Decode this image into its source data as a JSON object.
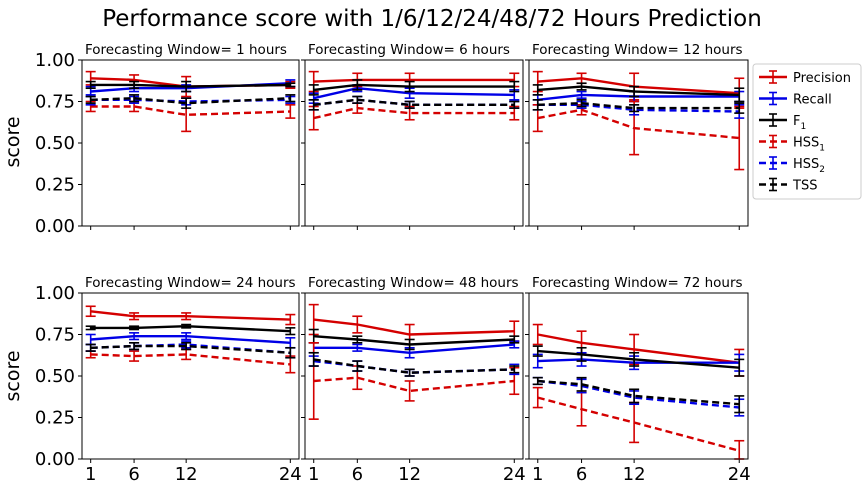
{
  "figure": {
    "title": "Performance score with 1/6/12/24/48/72 Hours Prediction"
  },
  "chart_data": {
    "type": "line",
    "ylabel": "score",
    "ylim": [
      0,
      1
    ],
    "yticks": [
      "0.00",
      "0.25",
      "0.50",
      "0.75",
      "1.00"
    ],
    "xticks": [
      1,
      6,
      12,
      24
    ],
    "xlim": [
      0,
      25
    ],
    "legend_position": "right",
    "legend": [
      {
        "label": "Precision",
        "sub": "",
        "color": "#d40000",
        "dash": false
      },
      {
        "label": "Recall",
        "sub": "",
        "color": "#0000e6",
        "dash": false
      },
      {
        "label": "F",
        "sub": "1",
        "color": "#000000",
        "dash": false
      },
      {
        "label": "HSS",
        "sub": "1",
        "color": "#d40000",
        "dash": true
      },
      {
        "label": "HSS",
        "sub": "2",
        "color": "#0000e6",
        "dash": true
      },
      {
        "label": "TSS",
        "sub": "",
        "color": "#000000",
        "dash": true
      }
    ],
    "panels": [
      {
        "title": "Forecasting Window= 1 hours",
        "x": [
          1,
          6,
          12,
          24
        ],
        "series": [
          {
            "key": "Precision",
            "color": "#d40000",
            "dash": false,
            "values": [
              0.89,
              0.88,
              0.84,
              0.85
            ],
            "err": [
              0.04,
              0.03,
              0.06,
              0.02
            ]
          },
          {
            "key": "Recall",
            "color": "#0000e6",
            "dash": false,
            "values": [
              0.81,
              0.83,
              0.83,
              0.86
            ],
            "err": [
              0.03,
              0.02,
              0.02,
              0.02
            ]
          },
          {
            "key": "F1",
            "color": "#000000",
            "dash": false,
            "values": [
              0.85,
              0.85,
              0.84,
              0.85
            ],
            "err": [
              0.02,
              0.02,
              0.03,
              0.01
            ]
          },
          {
            "key": "HSS1",
            "color": "#d40000",
            "dash": true,
            "values": [
              0.72,
              0.72,
              0.67,
              0.69
            ],
            "err": [
              0.03,
              0.03,
              0.1,
              0.04
            ]
          },
          {
            "key": "HSS2",
            "color": "#0000e6",
            "dash": true,
            "values": [
              0.76,
              0.76,
              0.75,
              0.76
            ],
            "err": [
              0.03,
              0.02,
              0.02,
              0.02
            ]
          },
          {
            "key": "TSS",
            "color": "#000000",
            "dash": true,
            "values": [
              0.76,
              0.77,
              0.74,
              0.77
            ],
            "err": [
              0.02,
              0.02,
              0.03,
              0.02
            ]
          }
        ]
      },
      {
        "title": "Forecasting Window= 6 hours",
        "x": [
          1,
          6,
          12,
          24
        ],
        "series": [
          {
            "key": "Precision",
            "color": "#d40000",
            "dash": false,
            "values": [
              0.87,
              0.88,
              0.88,
              0.88
            ],
            "err": [
              0.06,
              0.04,
              0.04,
              0.04
            ]
          },
          {
            "key": "Recall",
            "color": "#0000e6",
            "dash": false,
            "values": [
              0.77,
              0.83,
              0.8,
              0.79
            ],
            "err": [
              0.03,
              0.02,
              0.03,
              0.03
            ]
          },
          {
            "key": "F1",
            "color": "#000000",
            "dash": false,
            "values": [
              0.82,
              0.85,
              0.84,
              0.84
            ],
            "err": [
              0.03,
              0.03,
              0.03,
              0.03
            ]
          },
          {
            "key": "HSS1",
            "color": "#d40000",
            "dash": true,
            "values": [
              0.65,
              0.71,
              0.68,
              0.68
            ],
            "err": [
              0.07,
              0.03,
              0.04,
              0.04
            ]
          },
          {
            "key": "HSS2",
            "color": "#0000e6",
            "dash": true,
            "values": [
              0.73,
              0.76,
              0.73,
              0.73
            ],
            "err": [
              0.03,
              0.02,
              0.02,
              0.02
            ]
          },
          {
            "key": "TSS",
            "color": "#000000",
            "dash": true,
            "values": [
              0.73,
              0.76,
              0.73,
              0.73
            ],
            "err": [
              0.03,
              0.02,
              0.02,
              0.02
            ]
          }
        ]
      },
      {
        "title": "Forecasting Window= 12 hours",
        "x": [
          1,
          6,
          12,
          24
        ],
        "series": [
          {
            "key": "Precision",
            "color": "#d40000",
            "dash": false,
            "values": [
              0.87,
              0.89,
              0.84,
              0.8
            ],
            "err": [
              0.06,
              0.03,
              0.08,
              0.09
            ]
          },
          {
            "key": "Recall",
            "color": "#0000e6",
            "dash": false,
            "values": [
              0.76,
              0.79,
              0.78,
              0.78
            ],
            "err": [
              0.03,
              0.02,
              0.03,
              0.03
            ]
          },
          {
            "key": "F1",
            "color": "#000000",
            "dash": false,
            "values": [
              0.82,
              0.84,
              0.81,
              0.79
            ],
            "err": [
              0.03,
              0.02,
              0.03,
              0.04
            ]
          },
          {
            "key": "HSS1",
            "color": "#d40000",
            "dash": true,
            "values": [
              0.65,
              0.7,
              0.59,
              0.53
            ],
            "err": [
              0.08,
              0.03,
              0.16,
              0.19
            ]
          },
          {
            "key": "HSS2",
            "color": "#0000e6",
            "dash": true,
            "values": [
              0.73,
              0.73,
              0.7,
              0.69
            ],
            "err": [
              0.03,
              0.02,
              0.03,
              0.04
            ]
          },
          {
            "key": "TSS",
            "color": "#000000",
            "dash": true,
            "values": [
              0.73,
              0.74,
              0.71,
              0.71
            ],
            "err": [
              0.03,
              0.02,
              0.02,
              0.03
            ]
          }
        ]
      },
      {
        "title": "Forecasting Window= 24 hours",
        "x": [
          1,
          6,
          12,
          24
        ],
        "series": [
          {
            "key": "Precision",
            "color": "#d40000",
            "dash": false,
            "values": [
              0.89,
              0.86,
              0.86,
              0.84
            ],
            "err": [
              0.03,
              0.02,
              0.02,
              0.03
            ]
          },
          {
            "key": "Recall",
            "color": "#0000e6",
            "dash": false,
            "values": [
              0.72,
              0.74,
              0.74,
              0.7
            ],
            "err": [
              0.03,
              0.02,
              0.02,
              0.03
            ]
          },
          {
            "key": "F1",
            "color": "#000000",
            "dash": false,
            "values": [
              0.79,
              0.79,
              0.8,
              0.77
            ],
            "err": [
              0.01,
              0.01,
              0.01,
              0.02
            ]
          },
          {
            "key": "HSS1",
            "color": "#d40000",
            "dash": true,
            "values": [
              0.63,
              0.62,
              0.63,
              0.57
            ],
            "err": [
              0.02,
              0.03,
              0.03,
              0.05
            ]
          },
          {
            "key": "HSS2",
            "color": "#0000e6",
            "dash": true,
            "values": [
              0.67,
              0.68,
              0.69,
              0.64
            ],
            "err": [
              0.02,
              0.02,
              0.02,
              0.03
            ]
          },
          {
            "key": "TSS",
            "color": "#000000",
            "dash": true,
            "values": [
              0.67,
              0.68,
              0.68,
              0.64
            ],
            "err": [
              0.02,
              0.02,
              0.02,
              0.03
            ]
          }
        ]
      },
      {
        "title": "Forecasting Window= 48 hours",
        "x": [
          1,
          6,
          12,
          24
        ],
        "series": [
          {
            "key": "Precision",
            "color": "#d40000",
            "dash": false,
            "values": [
              0.84,
              0.81,
              0.75,
              0.77
            ],
            "err": [
              0.09,
              0.05,
              0.06,
              0.06
            ]
          },
          {
            "key": "Recall",
            "color": "#0000e6",
            "dash": false,
            "values": [
              0.67,
              0.67,
              0.64,
              0.69
            ],
            "err": [
              0.03,
              0.02,
              0.03,
              0.02
            ]
          },
          {
            "key": "F1",
            "color": "#000000",
            "dash": false,
            "values": [
              0.74,
              0.72,
              0.69,
              0.72
            ],
            "err": [
              0.04,
              0.02,
              0.03,
              0.02
            ]
          },
          {
            "key": "HSS1",
            "color": "#d40000",
            "dash": true,
            "values": [
              0.47,
              0.49,
              0.41,
              0.47
            ],
            "err": [
              0.23,
              0.07,
              0.06,
              0.08
            ]
          },
          {
            "key": "HSS2",
            "color": "#0000e6",
            "dash": true,
            "values": [
              0.59,
              0.56,
              0.52,
              0.54
            ],
            "err": [
              0.03,
              0.03,
              0.02,
              0.03
            ]
          },
          {
            "key": "TSS",
            "color": "#000000",
            "dash": true,
            "values": [
              0.6,
              0.56,
              0.52,
              0.54
            ],
            "err": [
              0.04,
              0.03,
              0.02,
              0.02
            ]
          }
        ]
      },
      {
        "title": "Forecasting Window= 72 hours",
        "x": [
          1,
          6,
          12,
          24
        ],
        "series": [
          {
            "key": "Precision",
            "color": "#d40000",
            "dash": false,
            "values": [
              0.75,
              0.7,
              0.66,
              0.58
            ],
            "err": [
              0.06,
              0.07,
              0.09,
              0.08
            ]
          },
          {
            "key": "Recall",
            "color": "#0000e6",
            "dash": false,
            "values": [
              0.59,
              0.6,
              0.58,
              0.58
            ],
            "err": [
              0.04,
              0.04,
              0.04,
              0.05
            ]
          },
          {
            "key": "F1",
            "color": "#000000",
            "dash": false,
            "values": [
              0.65,
              0.63,
              0.6,
              0.55
            ],
            "err": [
              0.03,
              0.04,
              0.04,
              0.05
            ]
          },
          {
            "key": "HSS1",
            "color": "#d40000",
            "dash": true,
            "values": [
              0.37,
              0.3,
              0.22,
              0.05
            ],
            "err": [
              0.06,
              0.1,
              0.12,
              0.06
            ]
          },
          {
            "key": "HSS2",
            "color": "#0000e6",
            "dash": true,
            "values": [
              0.47,
              0.44,
              0.37,
              0.31
            ],
            "err": [
              0.02,
              0.04,
              0.04,
              0.05
            ]
          },
          {
            "key": "TSS",
            "color": "#000000",
            "dash": true,
            "values": [
              0.47,
              0.45,
              0.38,
              0.33
            ],
            "err": [
              0.02,
              0.04,
              0.04,
              0.05
            ]
          }
        ]
      }
    ]
  }
}
